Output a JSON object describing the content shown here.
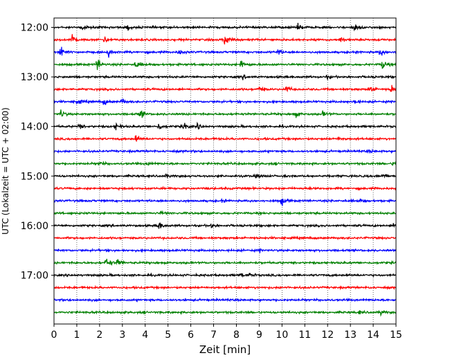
{
  "chart_data": {
    "type": "line",
    "xlabel": "Zeit  [min]",
    "ylabel": "UTC (Lokalzeit = UTC + 02:00)",
    "xlim": [
      0,
      15
    ],
    "xticks": [
      0,
      1,
      2,
      3,
      4,
      5,
      6,
      7,
      8,
      9,
      10,
      11,
      12,
      13,
      14,
      15
    ],
    "xtick_labels": [
      "0",
      "1",
      "2",
      "3",
      "4",
      "5",
      "6",
      "7",
      "8",
      "9",
      "10",
      "11",
      "12",
      "13",
      "14",
      "15"
    ],
    "grid": "vertical-dotted",
    "trace_interval_minutes": 15,
    "trace_start": "12:00",
    "trace_count": 24,
    "trace_colors": [
      "#000000",
      "#ff0000",
      "#0000ff",
      "#008000"
    ],
    "hour_labels": [
      "12:00",
      "13:00",
      "14:00",
      "15:00",
      "16:00",
      "17:00"
    ],
    "hour_label_trace_index": [
      0,
      4,
      8,
      12,
      16,
      20
    ],
    "series": [
      {
        "start": "12:00",
        "color": "#000000",
        "events": [
          [
            1.2,
            6
          ],
          [
            3.2,
            6
          ],
          [
            10.7,
            6
          ],
          [
            13.2,
            9
          ]
        ]
      },
      {
        "start": "12:15",
        "color": "#ff0000",
        "events": [
          [
            0.8,
            14
          ],
          [
            2.2,
            7
          ],
          [
            7.5,
            14
          ],
          [
            12.6,
            8
          ]
        ]
      },
      {
        "start": "12:30",
        "color": "#0000ff",
        "events": [
          [
            0.3,
            12
          ],
          [
            2.4,
            8
          ],
          [
            5.5,
            7
          ],
          [
            9.8,
            8
          ],
          [
            14.3,
            9
          ]
        ]
      },
      {
        "start": "12:45",
        "color": "#008000",
        "events": [
          [
            1.9,
            14
          ],
          [
            3.6,
            10
          ],
          [
            8.2,
            11
          ],
          [
            14.4,
            10
          ]
        ]
      },
      {
        "start": "13:00",
        "color": "#000000",
        "events": [
          [
            8.3,
            4
          ],
          [
            12.0,
            3
          ]
        ]
      },
      {
        "start": "13:15",
        "color": "#ff0000",
        "events": [
          [
            9.0,
            6
          ],
          [
            10.2,
            7
          ],
          [
            13.9,
            9
          ],
          [
            14.8,
            10
          ]
        ]
      },
      {
        "start": "13:30",
        "color": "#0000ff",
        "events": [
          [
            1.0,
            7
          ],
          [
            2.2,
            8
          ],
          [
            3.0,
            6
          ],
          [
            13.2,
            6
          ]
        ]
      },
      {
        "start": "13:45",
        "color": "#008000",
        "events": [
          [
            0.3,
            9
          ],
          [
            3.8,
            9
          ],
          [
            10.6,
            6
          ],
          [
            11.8,
            6
          ]
        ]
      },
      {
        "start": "14:00",
        "color": "#000000",
        "events": [
          [
            1.1,
            5
          ],
          [
            2.7,
            8
          ],
          [
            4.6,
            7
          ],
          [
            5.7,
            8
          ],
          [
            6.3,
            5
          ]
        ]
      },
      {
        "start": "14:15",
        "color": "#ff0000",
        "events": [
          [
            3.6,
            9
          ],
          [
            12.5,
            3
          ]
        ]
      },
      {
        "start": "14:30",
        "color": "#0000ff",
        "events": [
          [
            13.8,
            3
          ]
        ]
      },
      {
        "start": "14:45",
        "color": "#008000",
        "events": [
          [
            2.0,
            4
          ],
          [
            4.1,
            4
          ],
          [
            14.9,
            6
          ]
        ]
      },
      {
        "start": "15:00",
        "color": "#000000",
        "events": [
          [
            4.9,
            3
          ],
          [
            8.9,
            4
          ],
          [
            14.4,
            6
          ]
        ]
      },
      {
        "start": "15:15",
        "color": "#ff0000",
        "events": [
          [
            11.2,
            2
          ]
        ]
      },
      {
        "start": "15:30",
        "color": "#0000ff",
        "events": [
          [
            7.4,
            3
          ],
          [
            10.0,
            9
          ],
          [
            13.4,
            4
          ]
        ]
      },
      {
        "start": "15:45",
        "color": "#008000",
        "events": [
          [
            4.7,
            3
          ]
        ]
      },
      {
        "start": "16:00",
        "color": "#000000",
        "events": [
          [
            4.6,
            9
          ],
          [
            6.9,
            4
          ],
          [
            14.9,
            3
          ]
        ]
      },
      {
        "start": "16:15",
        "color": "#ff0000",
        "events": []
      },
      {
        "start": "16:30",
        "color": "#0000ff",
        "events": [
          [
            9.0,
            2
          ]
        ]
      },
      {
        "start": "16:45",
        "color": "#008000",
        "events": [
          [
            2.3,
            12
          ],
          [
            2.8,
            8
          ]
        ]
      },
      {
        "start": "17:00",
        "color": "#000000",
        "events": [
          [
            8.2,
            4
          ],
          [
            8.6,
            4
          ]
        ]
      },
      {
        "start": "17:15",
        "color": "#ff0000",
        "events": [
          [
            10.0,
            2
          ]
        ]
      },
      {
        "start": "17:30",
        "color": "#0000ff",
        "events": []
      },
      {
        "start": "17:45",
        "color": "#008000",
        "events": [
          [
            13.4,
            3
          ],
          [
            14.3,
            6
          ]
        ]
      }
    ]
  }
}
